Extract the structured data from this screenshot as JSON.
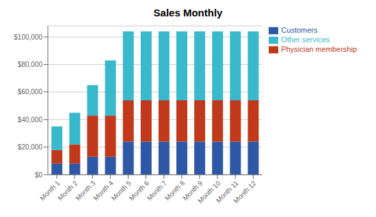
{
  "chart_data": {
    "type": "bar",
    "stacked": true,
    "title": "Sales Monthly",
    "categories": [
      "Month 1",
      "Month 2",
      "Month 3",
      "Month 4",
      "Month 5",
      "Month 6",
      "Month 7",
      "Month 8",
      "Month 9",
      "Month 10",
      "Month 11",
      "Month 12"
    ],
    "series": [
      {
        "name": "Customers",
        "color": "#2e58a6",
        "values": [
          8000,
          8000,
          13000,
          13000,
          24000,
          24000,
          24000,
          24000,
          24000,
          24000,
          24000,
          24000
        ]
      },
      {
        "name": "Physician membership",
        "color": "#c0391b",
        "values": [
          10000,
          14000,
          30000,
          30000,
          30000,
          30000,
          30000,
          30000,
          30000,
          30000,
          30000,
          30000
        ]
      },
      {
        "name": "Other services",
        "color": "#3ab8cc",
        "values": [
          17000,
          23000,
          22000,
          40000,
          50000,
          50000,
          50000,
          50000,
          50000,
          50000,
          50000,
          50000
        ]
      }
    ],
    "ylim": [
      0,
      108000
    ],
    "yticks": [
      {
        "value": 0,
        "label": "$0"
      },
      {
        "value": 20000,
        "label": "$20,000"
      },
      {
        "value": 40000,
        "label": "$40,000"
      },
      {
        "value": 60000,
        "label": "$60,000"
      },
      {
        "value": 80000,
        "label": "$80,000"
      },
      {
        "value": 100000,
        "label": "$100,000"
      }
    ],
    "grid": true,
    "legend": "right"
  }
}
